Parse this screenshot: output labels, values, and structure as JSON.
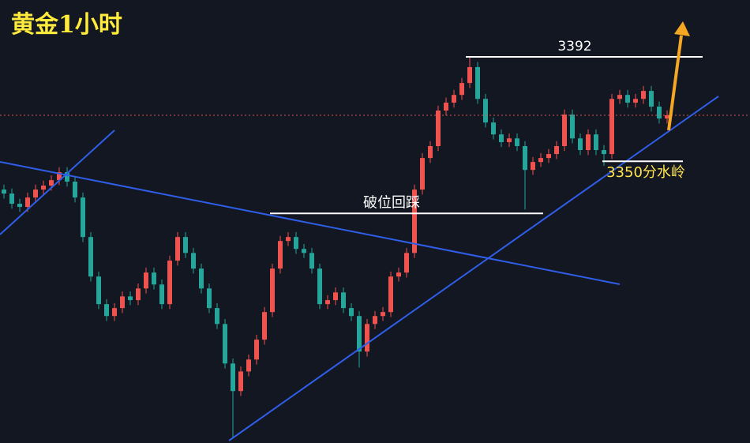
{
  "chart_data": {
    "type": "candlestick",
    "title": "黄金1小时",
    "ylim": [
      3236.6,
      3414.9
    ],
    "up_color": "#ef5350",
    "down_color": "#26a69a",
    "open": [
      3338.6,
      3337.0,
      3332.9,
      3331.6,
      3335.4,
      3338.6,
      3340.2,
      3342.4,
      3345.6,
      3341.8,
      3335.4,
      3319.5,
      3303.6,
      3292.5,
      3287.7,
      3290.9,
      3295.6,
      3294.1,
      3298.8,
      3305.2,
      3300.4,
      3292.5,
      3310.0,
      3319.5,
      3313.1,
      3306.8,
      3298.8,
      3290.9,
      3284.5,
      3268.6,
      3257.5,
      3265.4,
      3270.2,
      3278.2,
      3289.3,
      3306.8,
      3317.9,
      3319.5,
      3314.7,
      3313.1,
      3306.8,
      3292.5,
      3294.1,
      3297.2,
      3290.9,
      3287.7,
      3273.4,
      3284.5,
      3287.7,
      3289.3,
      3303.6,
      3305.2,
      3313.1,
      3338.6,
      3351.3,
      3356.1,
      3370.4,
      3373.6,
      3376.7,
      3381.5,
      3387.9,
      3375.1,
      3365.6,
      3360.8,
      3357.7,
      3359.2,
      3356.1,
      3346.5,
      3349.7,
      3351.3,
      3352.9,
      3356.1,
      3368.8,
      3359.2,
      3354.5,
      3360.8,
      3354.5,
      3352.9,
      3375.1,
      3376.7,
      3373.6,
      3375.1,
      3378.3,
      3372.0,
      3367.2
    ],
    "high": [
      3340.6,
      3339.0,
      3334.9,
      3337.4,
      3340.6,
      3342.2,
      3344.4,
      3347.6,
      3347.6,
      3343.8,
      3337.4,
      3321.5,
      3305.6,
      3294.5,
      3292.9,
      3297.6,
      3297.6,
      3300.8,
      3307.2,
      3307.2,
      3302.4,
      3312.0,
      3321.5,
      3321.5,
      3315.1,
      3308.8,
      3300.8,
      3292.9,
      3286.5,
      3270.6,
      3267.4,
      3272.2,
      3280.2,
      3291.3,
      3308.8,
      3319.9,
      3321.5,
      3321.5,
      3316.7,
      3315.1,
      3308.8,
      3296.1,
      3299.2,
      3299.2,
      3292.9,
      3289.7,
      3286.5,
      3289.7,
      3291.3,
      3305.6,
      3307.2,
      3315.1,
      3340.6,
      3353.3,
      3358.1,
      3372.4,
      3375.6,
      3378.7,
      3383.5,
      3392.0,
      3389.9,
      3377.1,
      3367.6,
      3362.8,
      3361.2,
      3361.2,
      3358.1,
      3351.7,
      3353.3,
      3354.9,
      3358.1,
      3370.8,
      3370.8,
      3361.2,
      3362.8,
      3362.8,
      3356.5,
      3377.1,
      3378.7,
      3378.7,
      3377.1,
      3380.3,
      3380.3,
      3374.0,
      3370.5
    ],
    "low": [
      3335.0,
      3330.9,
      3329.6,
      3329.6,
      3333.4,
      3336.6,
      3338.2,
      3340.4,
      3339.8,
      3333.4,
      3317.5,
      3301.6,
      3290.5,
      3285.7,
      3285.7,
      3288.9,
      3292.1,
      3292.1,
      3296.8,
      3298.4,
      3290.5,
      3290.5,
      3308.0,
      3311.1,
      3304.8,
      3296.8,
      3288.9,
      3282.5,
      3266.6,
      3238.4,
      3255.5,
      3263.4,
      3268.2,
      3276.2,
      3287.3,
      3304.8,
      3315.9,
      3312.7,
      3311.1,
      3304.8,
      3290.5,
      3290.5,
      3292.1,
      3288.9,
      3285.7,
      3267.0,
      3271.4,
      3282.5,
      3285.7,
      3287.3,
      3301.6,
      3303.2,
      3311.1,
      3336.6,
      3349.3,
      3354.1,
      3368.4,
      3371.6,
      3374.7,
      3379.5,
      3373.1,
      3363.6,
      3358.8,
      3355.7,
      3355.7,
      3354.1,
      3330.6,
      3344.5,
      3347.7,
      3349.3,
      3350.9,
      3354.1,
      3357.2,
      3352.5,
      3352.5,
      3352.5,
      3348.1,
      3350.9,
      3373.1,
      3371.6,
      3371.6,
      3373.1,
      3370.0,
      3365.2,
      3365.2
    ],
    "close": [
      3337.0,
      3332.9,
      3331.6,
      3335.4,
      3338.6,
      3340.2,
      3342.4,
      3345.6,
      3341.8,
      3335.4,
      3319.5,
      3303.6,
      3292.5,
      3287.7,
      3290.9,
      3295.6,
      3294.1,
      3298.8,
      3305.2,
      3300.4,
      3292.5,
      3310.0,
      3319.5,
      3313.1,
      3306.8,
      3298.8,
      3290.9,
      3284.5,
      3268.6,
      3257.5,
      3265.4,
      3270.2,
      3278.2,
      3289.3,
      3306.8,
      3317.9,
      3319.5,
      3314.7,
      3313.1,
      3306.8,
      3292.5,
      3294.1,
      3297.2,
      3290.9,
      3287.7,
      3273.4,
      3284.5,
      3287.7,
      3289.3,
      3303.6,
      3305.2,
      3313.1,
      3338.6,
      3351.3,
      3356.1,
      3370.4,
      3373.6,
      3376.7,
      3381.5,
      3387.9,
      3375.1,
      3365.6,
      3360.8,
      3357.7,
      3359.2,
      3356.1,
      3346.5,
      3349.7,
      3351.3,
      3352.9,
      3356.1,
      3368.8,
      3359.2,
      3354.5,
      3360.8,
      3354.5,
      3352.9,
      3375.1,
      3376.7,
      3373.6,
      3375.1,
      3378.3,
      3372.0,
      3367.2,
      3368.5
    ],
    "price_line": 3368.5,
    "levels": [
      {
        "value": 3392,
        "label": "3392"
      },
      {
        "value": 3329,
        "label": "破位回踩"
      },
      {
        "value": 3350,
        "label": "3350分水岭"
      }
    ]
  }
}
